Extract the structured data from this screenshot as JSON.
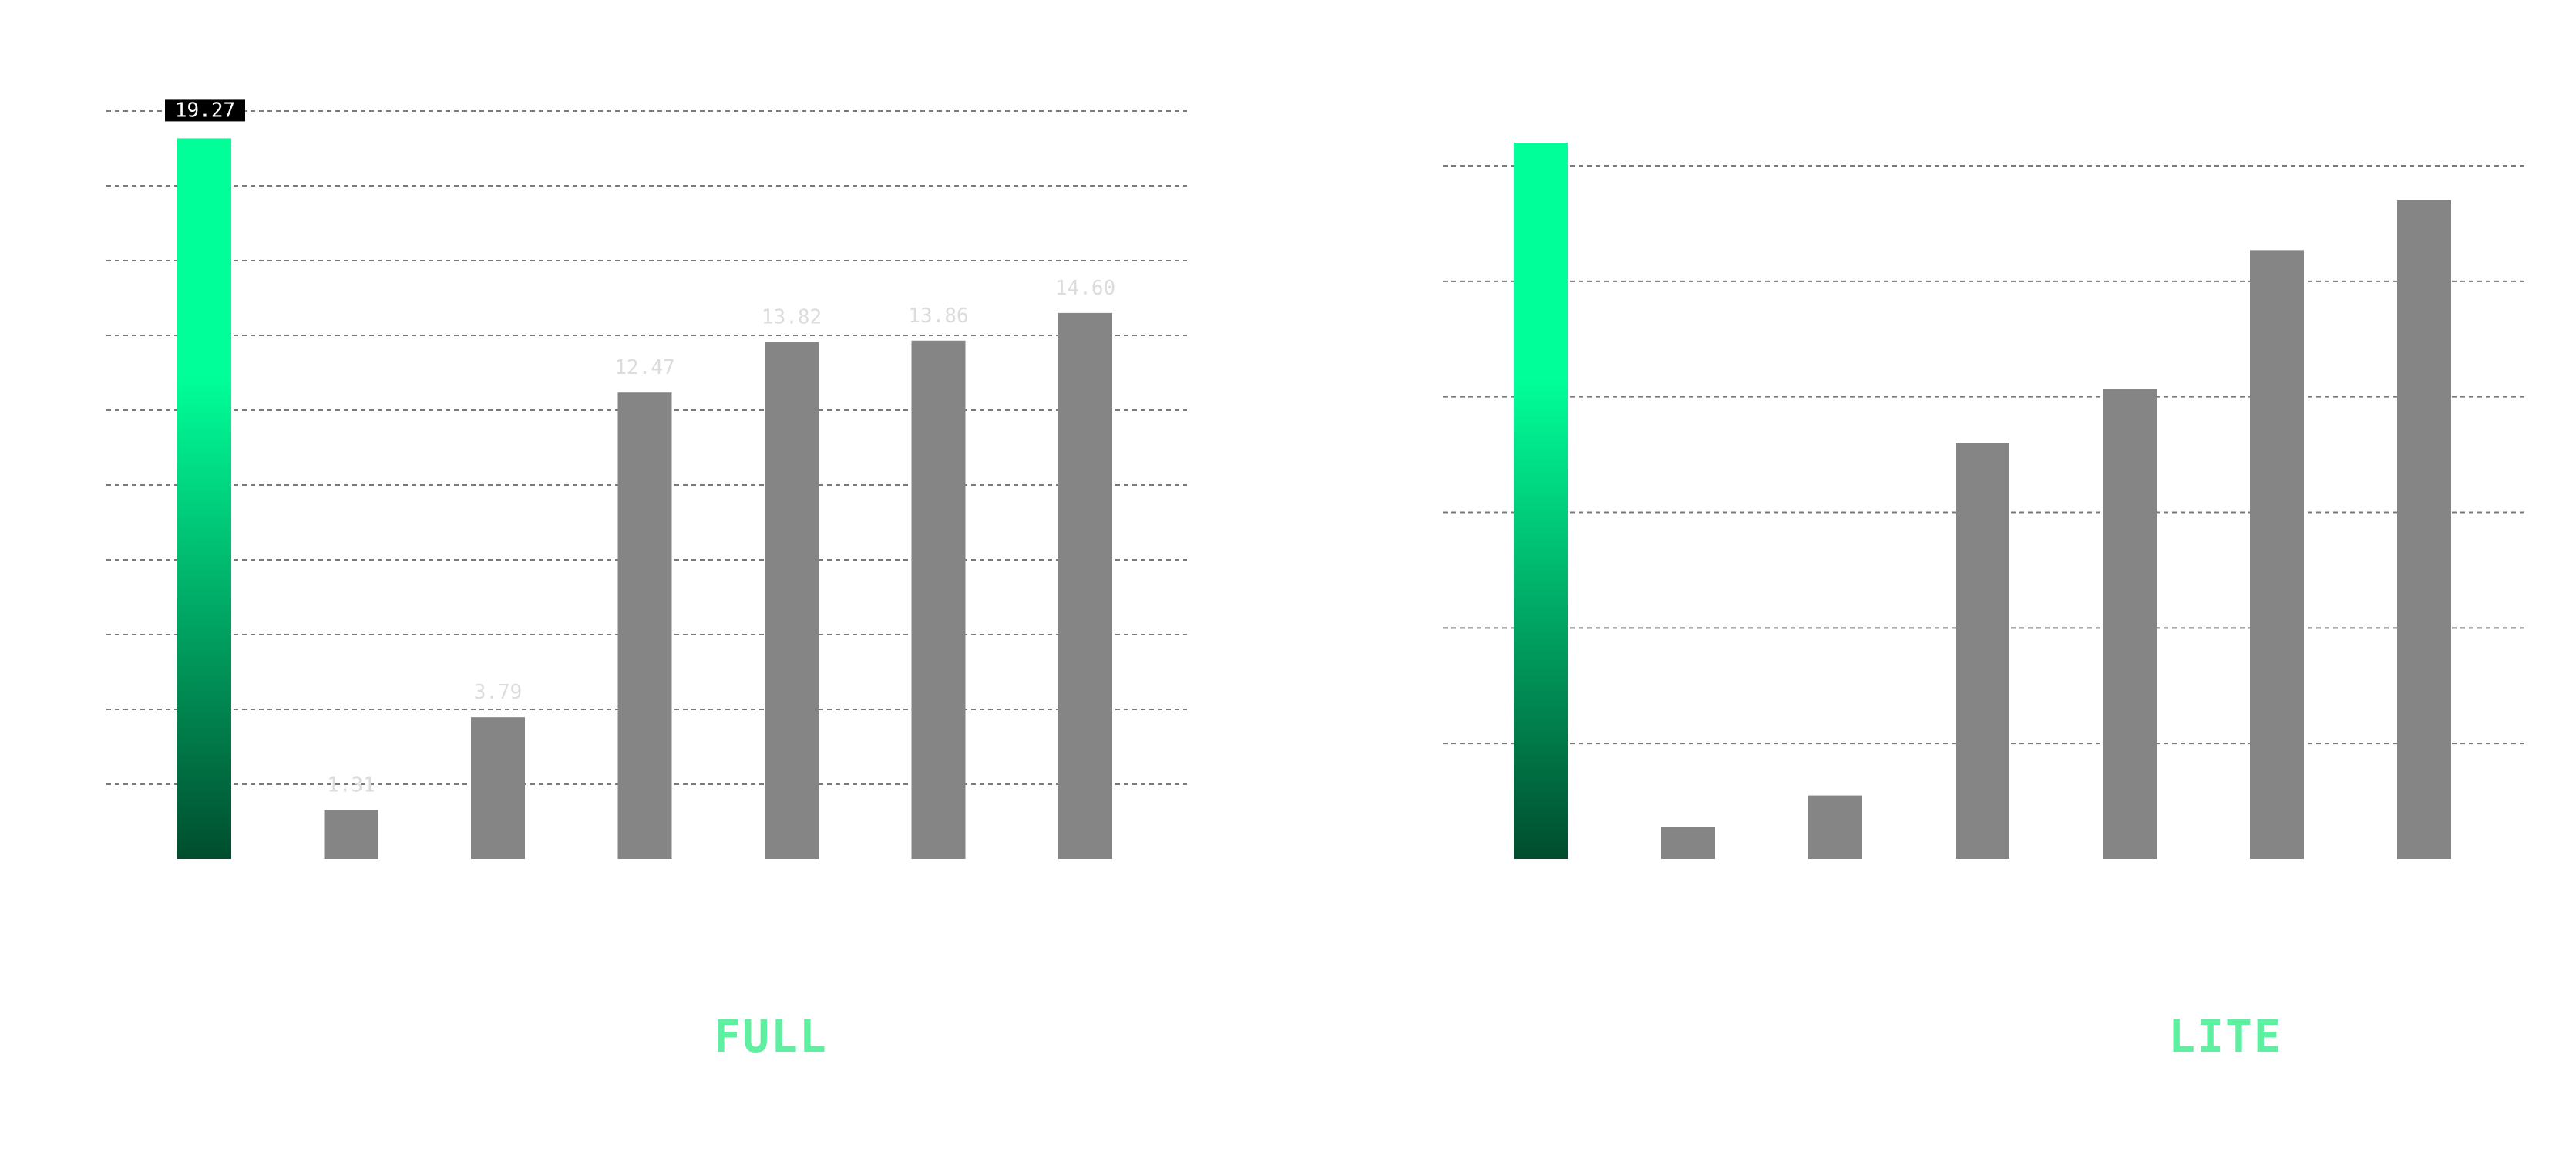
{
  "colors": {
    "highlight_top": "#00ff99",
    "highlight_bottom": "#004d2e",
    "bar": "#858585",
    "grid": "#7a7a7a",
    "value_label": "#dcdcdc",
    "highlight_label_bg": "#000000",
    "highlight_label_text": "#ffffff",
    "title": "#5ef0a0"
  },
  "chart_data": [
    {
      "type": "bar",
      "title": "FULL",
      "values": [
        19.27,
        1.31,
        3.79,
        12.47,
        13.82,
        13.86,
        14.6
      ],
      "value_labels": [
        "19.27",
        "1.31",
        "3.79",
        "12.47",
        "13.82",
        "13.86",
        "14.60"
      ],
      "highlight_index": 0,
      "ylim": [
        0,
        20
      ],
      "grid": true,
      "grid_step": 2
    },
    {
      "type": "bar",
      "title": "LITE",
      "values": [
        6.2,
        0.28,
        0.55,
        3.6,
        4.07,
        5.27,
        5.7
      ],
      "highlight_index": 0,
      "ylim": [
        0,
        6
      ],
      "grid": true,
      "grid_step": 1
    }
  ]
}
